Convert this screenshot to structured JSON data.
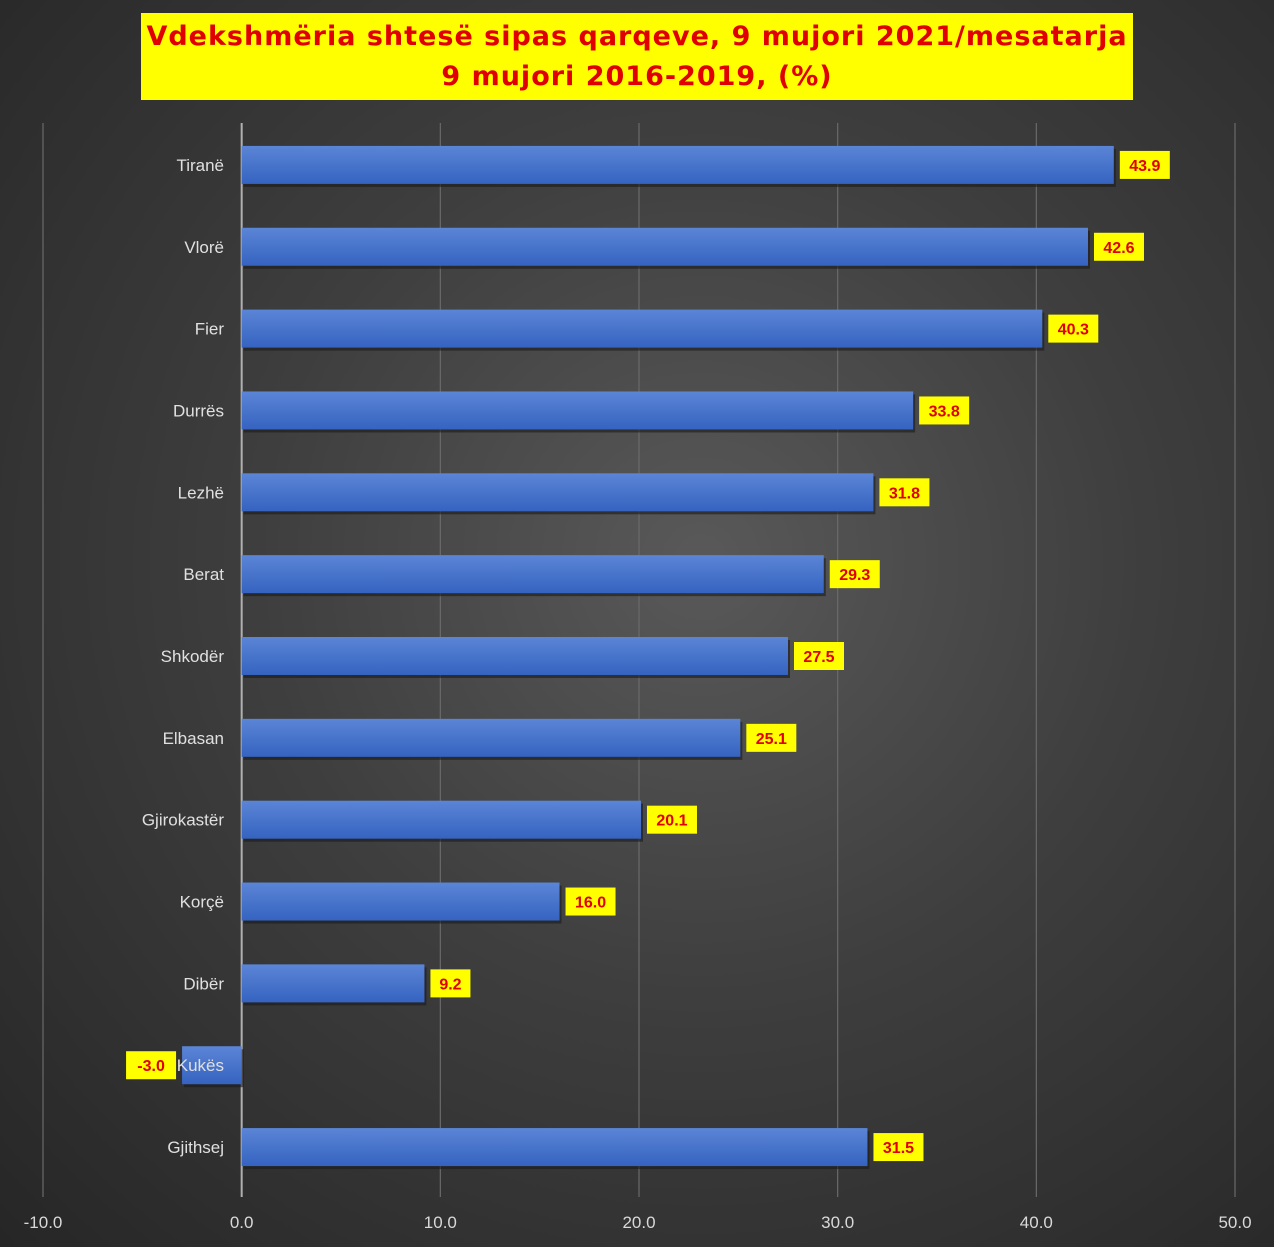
{
  "chart_data": {
    "type": "bar",
    "orientation": "horizontal",
    "title": "Vdekshmëria shtesë sipas qarqeve, 9 mujori 2021/mesatarja 9 mujori 2016-2019, (%)",
    "categories": [
      "Tiranë",
      "Vlorë",
      "Fier",
      "Durrës",
      "Lezhë",
      "Berat",
      "Shkodër",
      "Elbasan",
      "Gjirokastër",
      "Korçë",
      "Dibër",
      "Kukës",
      "Gjithsej"
    ],
    "values": [
      43.9,
      42.6,
      40.3,
      33.8,
      31.8,
      29.3,
      27.5,
      25.1,
      20.1,
      16.0,
      9.2,
      -3.0,
      31.5
    ],
    "xlim": [
      -10,
      50
    ],
    "xticks": [
      "-10.0",
      "0.0",
      "10.0",
      "20.0",
      "30.0",
      "40.0",
      "50.0"
    ],
    "grid": true,
    "colors": {
      "bar": "#4472c4",
      "label_bg": "#ffff00",
      "label_text": "#e00000"
    }
  }
}
